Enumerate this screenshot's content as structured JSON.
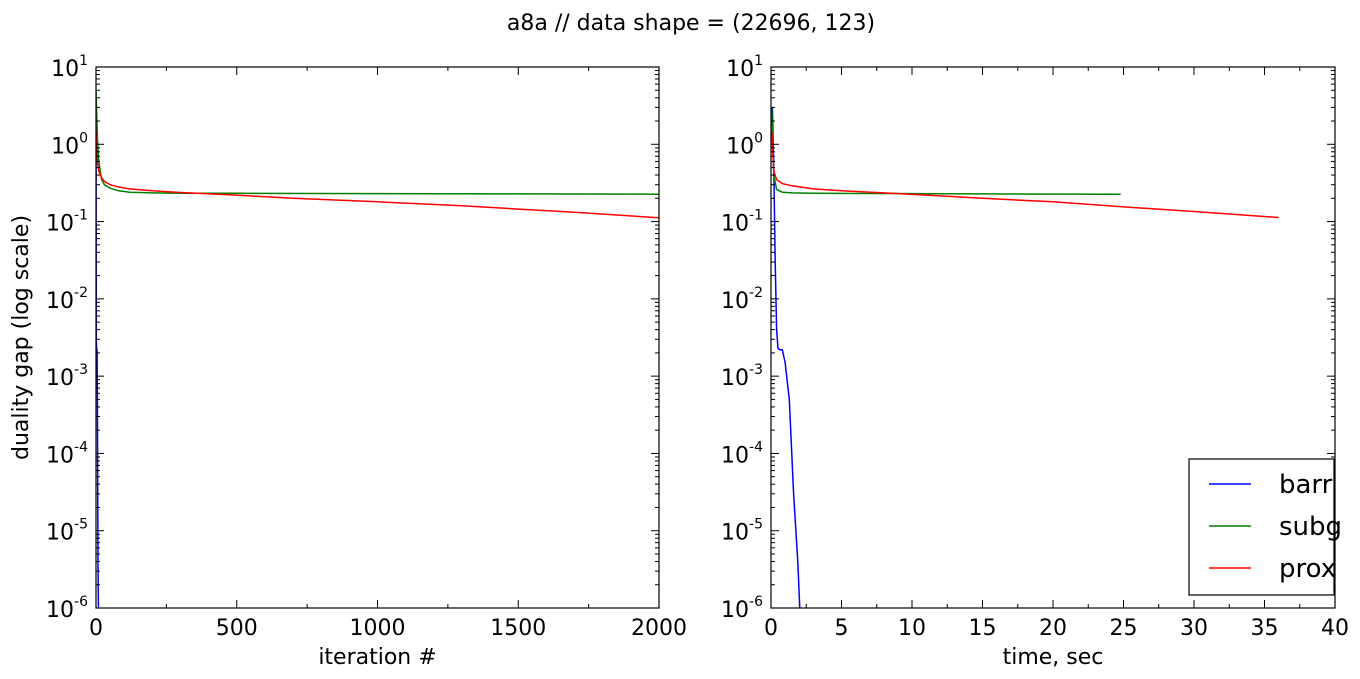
{
  "figure": {
    "title": "a8a // data shape = (22696, 123)"
  },
  "chart_data": [
    {
      "type": "line",
      "title": "",
      "xlabel": "iteration #",
      "ylabel": "duality gap (log scale)",
      "xlim": [
        0,
        2000
      ],
      "ylim": [
        1e-06,
        10
      ],
      "yscale": "log",
      "xticks": [
        {
          "value": 0,
          "label": "0"
        },
        {
          "value": 500,
          "label": "500"
        },
        {
          "value": 1000,
          "label": "1000"
        },
        {
          "value": 1500,
          "label": "1500"
        },
        {
          "value": 2000,
          "label": "2000"
        }
      ],
      "yticks": [
        {
          "value": 1e-06,
          "base": "10",
          "exp": "-6"
        },
        {
          "value": 1e-05,
          "base": "10",
          "exp": "-5"
        },
        {
          "value": 0.0001,
          "base": "10",
          "exp": "-4"
        },
        {
          "value": 0.001,
          "base": "10",
          "exp": "-3"
        },
        {
          "value": 0.01,
          "base": "10",
          "exp": "-2"
        },
        {
          "value": 0.1,
          "base": "10",
          "exp": "-1"
        },
        {
          "value": 1,
          "base": "10",
          "exp": "0"
        },
        {
          "value": 10,
          "base": "10",
          "exp": "1"
        }
      ],
      "grid": false,
      "legend": null,
      "series": [
        {
          "name": "barr",
          "color": "#0000ff",
          "x": [
            0,
            1,
            2,
            3,
            4,
            5,
            6,
            7,
            8,
            9
          ],
          "y": [
            3,
            0.003,
            0.0023,
            0.0022,
            0.0021,
            0.0005,
            4e-05,
            4e-06,
            1.5e-06,
            8e-07
          ]
        },
        {
          "name": "subg",
          "color": "#008000",
          "x": [
            0,
            5,
            10,
            20,
            30,
            50,
            80,
            120,
            200,
            300,
            500,
            1000,
            1500,
            2000
          ],
          "y": [
            5,
            1.2,
            0.6,
            0.35,
            0.3,
            0.27,
            0.25,
            0.24,
            0.235,
            0.233,
            0.232,
            0.23,
            0.228,
            0.226
          ]
        },
        {
          "name": "prox",
          "color": "#ff0000",
          "x": [
            0,
            5,
            10,
            20,
            30,
            50,
            80,
            120,
            200,
            300,
            500,
            700,
            1000,
            1300,
            1500,
            1700,
            2000
          ],
          "y": [
            1.5,
            0.6,
            0.45,
            0.37,
            0.33,
            0.3,
            0.28,
            0.265,
            0.25,
            0.238,
            0.22,
            0.2,
            0.18,
            0.16,
            0.145,
            0.132,
            0.112
          ]
        }
      ]
    },
    {
      "type": "line",
      "title": "",
      "xlabel": "time, sec",
      "ylabel": "",
      "xlim": [
        0,
        40
      ],
      "ylim": [
        1e-06,
        10
      ],
      "yscale": "log",
      "xticks": [
        {
          "value": 0,
          "label": "0"
        },
        {
          "value": 5,
          "label": "5"
        },
        {
          "value": 10,
          "label": "10"
        },
        {
          "value": 15,
          "label": "15"
        },
        {
          "value": 20,
          "label": "20"
        },
        {
          "value": 25,
          "label": "25"
        },
        {
          "value": 30,
          "label": "30"
        },
        {
          "value": 35,
          "label": "35"
        },
        {
          "value": 40,
          "label": "40"
        }
      ],
      "yticks": [
        {
          "value": 1e-06,
          "base": "10",
          "exp": "-6"
        },
        {
          "value": 1e-05,
          "base": "10",
          "exp": "-5"
        },
        {
          "value": 0.0001,
          "base": "10",
          "exp": "-4"
        },
        {
          "value": 0.001,
          "base": "10",
          "exp": "-3"
        },
        {
          "value": 0.01,
          "base": "10",
          "exp": "-2"
        },
        {
          "value": 0.1,
          "base": "10",
          "exp": "-1"
        },
        {
          "value": 1,
          "base": "10",
          "exp": "0"
        },
        {
          "value": 10,
          "base": "10",
          "exp": "1"
        }
      ],
      "grid": false,
      "legend": "lower right",
      "series": [
        {
          "name": "barr",
          "color": "#0000ff",
          "x": [
            0.1,
            0.2,
            0.3,
            0.4,
            0.5,
            0.6,
            0.8,
            1.0,
            1.3,
            1.6,
            1.9,
            2.05
          ],
          "y": [
            3,
            0.5,
            0.03,
            0.004,
            0.0023,
            0.0022,
            0.0022,
            0.0015,
            0.0005,
            3e-05,
            4e-06,
            9e-07
          ]
        },
        {
          "name": "subg",
          "color": "#008000",
          "x": [
            0.05,
            0.2,
            0.4,
            0.8,
            1.5,
            3,
            6,
            10,
            15,
            20,
            24.8
          ],
          "y": [
            3,
            0.4,
            0.26,
            0.24,
            0.235,
            0.233,
            0.231,
            0.23,
            0.228,
            0.227,
            0.226
          ]
        },
        {
          "name": "prox",
          "color": "#ff0000",
          "x": [
            0.05,
            0.2,
            0.4,
            0.8,
            1.5,
            3,
            5,
            8,
            10,
            12,
            15,
            20,
            25,
            30,
            36
          ],
          "y": [
            1.5,
            0.45,
            0.35,
            0.31,
            0.29,
            0.265,
            0.25,
            0.235,
            0.225,
            0.215,
            0.2,
            0.18,
            0.155,
            0.135,
            0.113
          ]
        }
      ]
    }
  ]
}
